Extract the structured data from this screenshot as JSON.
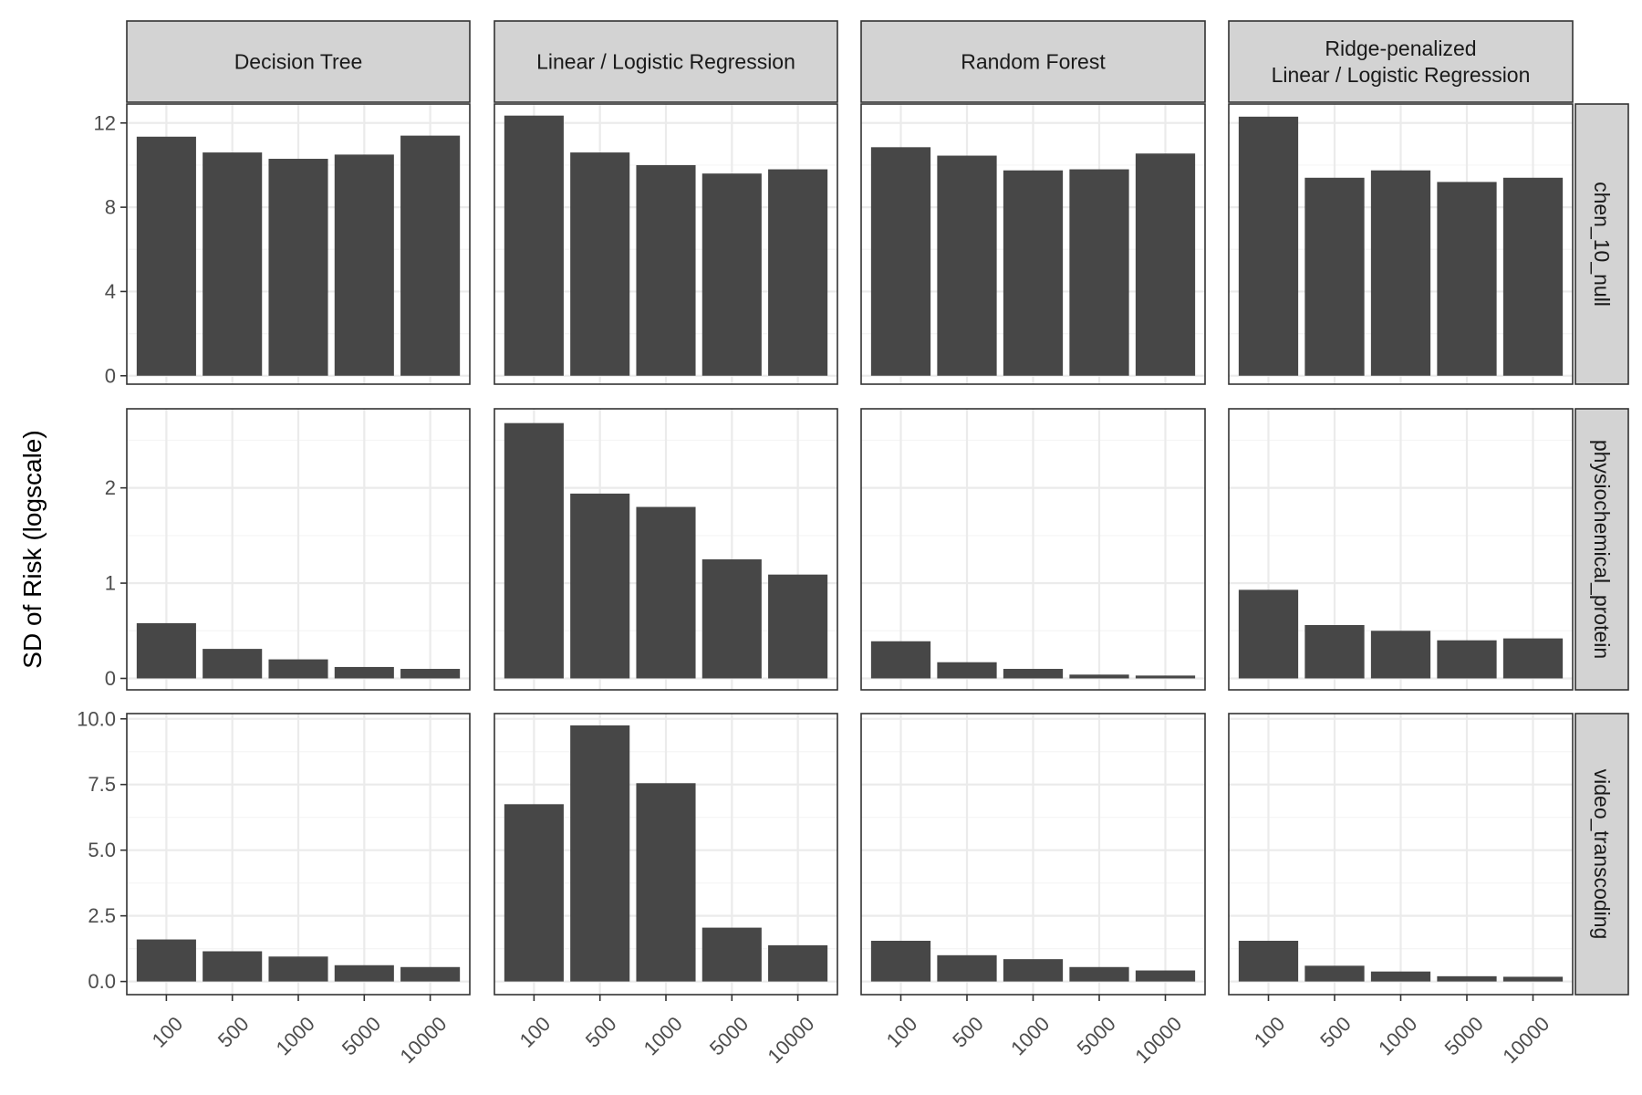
{
  "chart_data": {
    "type": "bar",
    "layout": "facet_grid",
    "title": "",
    "xlabel": "",
    "ylabel": "SD of Risk (logscale)",
    "categories": [
      "100",
      "500",
      "1000",
      "5000",
      "10000"
    ],
    "columns": [
      {
        "label": "Decision Tree"
      },
      {
        "label": "Linear / Logistic Regression"
      },
      {
        "label": "Random Forest"
      },
      {
        "label": "Ridge-penalized\nLinear / Logistic Regression"
      }
    ],
    "rows": [
      {
        "label": "chen_10_null",
        "ylim": [
          -0.4,
          12.9
        ],
        "yticks": [
          0,
          4,
          8,
          12
        ],
        "ytick_labels": [
          "0",
          "4",
          "8",
          "12"
        ],
        "minor_breaks": [
          2,
          6,
          10
        ],
        "values": [
          [
            11.35,
            10.6,
            10.3,
            10.5,
            11.4
          ],
          [
            12.35,
            10.6,
            10.0,
            9.6,
            9.8
          ],
          [
            10.85,
            10.45,
            9.75,
            9.8,
            10.55
          ],
          [
            12.3,
            9.4,
            9.75,
            9.2,
            9.4
          ]
        ]
      },
      {
        "label": "physiochemical_protein",
        "ylim": [
          -0.12,
          2.83
        ],
        "yticks": [
          0,
          1,
          2
        ],
        "ytick_labels": [
          "0",
          "1",
          "2"
        ],
        "minor_breaks": [
          0.5,
          1.5,
          2.5
        ],
        "values": [
          [
            0.58,
            0.31,
            0.2,
            0.12,
            0.1
          ],
          [
            2.68,
            1.94,
            1.8,
            1.25,
            1.09
          ],
          [
            0.39,
            0.17,
            0.1,
            0.04,
            0.03
          ],
          [
            0.93,
            0.56,
            0.5,
            0.4,
            0.42
          ]
        ]
      },
      {
        "label": "video_transcoding",
        "ylim": [
          -0.5,
          10.2
        ],
        "yticks": [
          0,
          2.5,
          5,
          7.5,
          10
        ],
        "ytick_labels": [
          "0.0",
          "2.5",
          "5.0",
          "7.5",
          "10.0"
        ],
        "minor_breaks": [
          1.25,
          3.75,
          6.25,
          8.75
        ],
        "values": [
          [
            1.6,
            1.15,
            0.95,
            0.62,
            0.55
          ],
          [
            6.75,
            9.75,
            7.55,
            2.05,
            1.38
          ],
          [
            1.55,
            1.0,
            0.85,
            0.55,
            0.42
          ],
          [
            1.55,
            0.6,
            0.38,
            0.2,
            0.18
          ]
        ]
      }
    ],
    "colors": {
      "bar": "#474747",
      "strip_fill": "#d3d3d3",
      "panel_border": "#333333",
      "grid_major": "#ebebeb",
      "grid_minor": "#f5f5f5",
      "tick_text": "#4d4d4d"
    },
    "grid": true,
    "legend": "none"
  }
}
